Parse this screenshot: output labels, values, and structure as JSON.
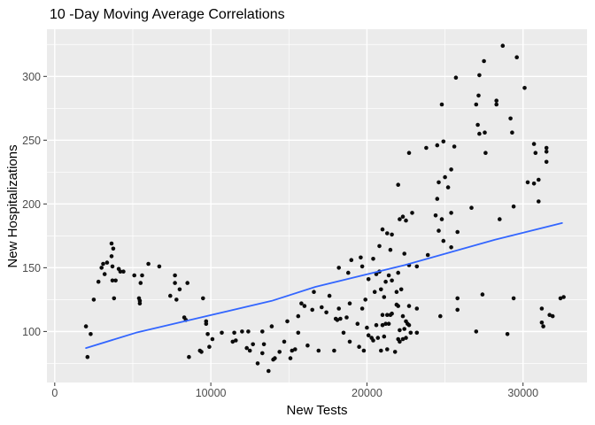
{
  "chart_data": {
    "type": "scatter",
    "title": "10 -Day Moving Average Correlations",
    "xlabel": "New Tests",
    "ylabel": "New Hospitalizations",
    "x_ticks": [
      0,
      10000,
      20000,
      30000
    ],
    "x_tick_labels": [
      "0",
      "10000",
      "20000",
      "30000"
    ],
    "y_ticks": [
      100,
      150,
      200,
      250,
      300
    ],
    "y_tick_labels": [
      "100",
      "150",
      "200",
      "250",
      "300"
    ],
    "x_minor_ticks": [
      5000,
      15000,
      25000
    ],
    "y_minor_ticks": [
      75,
      125,
      175,
      225,
      275,
      325
    ],
    "xlim": [
      -500,
      34100
    ],
    "ylim": [
      60,
      337
    ],
    "grid": true,
    "legend": "none",
    "panel_bg": "#EBEBEB",
    "grid_major_color": "#FFFFFF",
    "grid_minor_color": "#F7F7F7",
    "point_color": "#0B0B0B",
    "trend_color": "#3366FF",
    "tick_mark_color": "#333333",
    "tick_label_color": "#4D4D4D",
    "points": [
      [
        2000,
        104
      ],
      [
        2100,
        80
      ],
      [
        2300,
        98
      ],
      [
        2500,
        125
      ],
      [
        2800,
        139
      ],
      [
        3000,
        150
      ],
      [
        3100,
        153
      ],
      [
        3200,
        145
      ],
      [
        3350,
        154
      ],
      [
        3640,
        169
      ],
      [
        3640,
        159
      ],
      [
        3700,
        151
      ],
      [
        3700,
        140
      ],
      [
        3750,
        165
      ],
      [
        3800,
        126
      ],
      [
        3900,
        140
      ],
      [
        4100,
        149
      ],
      [
        4200,
        147
      ],
      [
        4400,
        147
      ],
      [
        5100,
        144
      ],
      [
        5400,
        126
      ],
      [
        5450,
        124
      ],
      [
        5450,
        122
      ],
      [
        5500,
        138
      ],
      [
        5600,
        144
      ],
      [
        6000,
        153
      ],
      [
        6700,
        151
      ],
      [
        7400,
        128
      ],
      [
        7700,
        144
      ],
      [
        7700,
        138
      ],
      [
        7800,
        125
      ],
      [
        8000,
        133
      ],
      [
        8300,
        111
      ],
      [
        8400,
        109
      ],
      [
        8500,
        138
      ],
      [
        8600,
        80
      ],
      [
        9300,
        85
      ],
      [
        9400,
        84
      ],
      [
        9500,
        126
      ],
      [
        9700,
        108
      ],
      [
        9700,
        106
      ],
      [
        9800,
        98
      ],
      [
        9900,
        88
      ],
      [
        10100,
        94
      ],
      [
        10700,
        99
      ],
      [
        11400,
        92
      ],
      [
        11500,
        99
      ],
      [
        11600,
        93
      ],
      [
        12000,
        100
      ],
      [
        12300,
        87
      ],
      [
        12400,
        100
      ],
      [
        12500,
        85
      ],
      [
        12700,
        90
      ],
      [
        13000,
        75
      ],
      [
        13300,
        100
      ],
      [
        13300,
        83
      ],
      [
        13400,
        90
      ],
      [
        13700,
        69
      ],
      [
        13900,
        104
      ],
      [
        14000,
        78
      ],
      [
        14100,
        79
      ],
      [
        14400,
        84
      ],
      [
        14700,
        92
      ],
      [
        14900,
        108
      ],
      [
        15100,
        79
      ],
      [
        15200,
        85
      ],
      [
        15400,
        86
      ],
      [
        15600,
        99
      ],
      [
        15600,
        112
      ],
      [
        15800,
        122
      ],
      [
        16000,
        120
      ],
      [
        16200,
        89
      ],
      [
        16500,
        117
      ],
      [
        16600,
        131
      ],
      [
        16900,
        85
      ],
      [
        17100,
        119
      ],
      [
        17400,
        115
      ],
      [
        17600,
        128
      ],
      [
        17900,
        85
      ],
      [
        18000,
        110
      ],
      [
        18100,
        109
      ],
      [
        18200,
        118
      ],
      [
        18200,
        150
      ],
      [
        18300,
        110
      ],
      [
        18500,
        99
      ],
      [
        18700,
        111
      ],
      [
        18800,
        146
      ],
      [
        18900,
        92
      ],
      [
        18900,
        122
      ],
      [
        19000,
        156
      ],
      [
        19400,
        106
      ],
      [
        19500,
        88
      ],
      [
        19600,
        158
      ],
      [
        19700,
        118
      ],
      [
        19700,
        151
      ],
      [
        19800,
        85
      ],
      [
        19900,
        125
      ],
      [
        20000,
        103
      ],
      [
        20100,
        97
      ],
      [
        20100,
        141
      ],
      [
        20300,
        95
      ],
      [
        20400,
        93
      ],
      [
        20400,
        157
      ],
      [
        20500,
        131
      ],
      [
        20600,
        105
      ],
      [
        20600,
        145
      ],
      [
        20700,
        95
      ],
      [
        20800,
        147
      ],
      [
        20800,
        167
      ],
      [
        20900,
        85
      ],
      [
        20900,
        133
      ],
      [
        21000,
        105
      ],
      [
        21000,
        113
      ],
      [
        21000,
        180
      ],
      [
        21100,
        96
      ],
      [
        21100,
        127
      ],
      [
        21200,
        106
      ],
      [
        21200,
        139
      ],
      [
        21300,
        86
      ],
      [
        21300,
        113
      ],
      [
        21300,
        177
      ],
      [
        21400,
        106
      ],
      [
        21400,
        144
      ],
      [
        21500,
        113
      ],
      [
        21500,
        164
      ],
      [
        21600,
        114
      ],
      [
        21600,
        140
      ],
      [
        21600,
        176
      ],
      [
        21800,
        84
      ],
      [
        21900,
        121
      ],
      [
        21900,
        131
      ],
      [
        22000,
        94
      ],
      [
        22000,
        120
      ],
      [
        22000,
        146
      ],
      [
        22000,
        215
      ],
      [
        22100,
        92
      ],
      [
        22100,
        101
      ],
      [
        22100,
        188
      ],
      [
        22200,
        133
      ],
      [
        22300,
        94
      ],
      [
        22300,
        112
      ],
      [
        22300,
        190
      ],
      [
        22400,
        102
      ],
      [
        22400,
        161
      ],
      [
        22500,
        95
      ],
      [
        22500,
        108
      ],
      [
        22500,
        187
      ],
      [
        22600,
        106
      ],
      [
        22700,
        105
      ],
      [
        22700,
        120
      ],
      [
        22700,
        152
      ],
      [
        22700,
        240
      ],
      [
        22800,
        99
      ],
      [
        22900,
        193
      ],
      [
        23200,
        99
      ],
      [
        23200,
        118
      ],
      [
        23200,
        151
      ],
      [
        23800,
        244
      ],
      [
        23900,
        160
      ],
      [
        24400,
        191
      ],
      [
        24500,
        204
      ],
      [
        24500,
        246
      ],
      [
        24600,
        179
      ],
      [
        24600,
        217
      ],
      [
        24700,
        112
      ],
      [
        24800,
        188
      ],
      [
        24800,
        278
      ],
      [
        24900,
        171
      ],
      [
        24900,
        249
      ],
      [
        25000,
        221
      ],
      [
        25200,
        213
      ],
      [
        25400,
        166
      ],
      [
        25400,
        193
      ],
      [
        25400,
        227
      ],
      [
        25600,
        245
      ],
      [
        25700,
        299
      ],
      [
        25800,
        117
      ],
      [
        25800,
        126
      ],
      [
        25800,
        178
      ],
      [
        26700,
        197
      ],
      [
        27000,
        100
      ],
      [
        27000,
        278
      ],
      [
        27100,
        262
      ],
      [
        27150,
        285
      ],
      [
        27200,
        255
      ],
      [
        27200,
        301
      ],
      [
        27400,
        129
      ],
      [
        27500,
        312
      ],
      [
        27550,
        256
      ],
      [
        27600,
        240
      ],
      [
        28300,
        281
      ],
      [
        28300,
        278
      ],
      [
        28500,
        188
      ],
      [
        28700,
        324
      ],
      [
        29000,
        98
      ],
      [
        29200,
        267
      ],
      [
        29300,
        256
      ],
      [
        29400,
        126
      ],
      [
        29400,
        198
      ],
      [
        29600,
        315
      ],
      [
        30100,
        291
      ],
      [
        30300,
        217
      ],
      [
        30700,
        216
      ],
      [
        30700,
        247
      ],
      [
        30800,
        240
      ],
      [
        31000,
        202
      ],
      [
        31000,
        219
      ],
      [
        31200,
        107
      ],
      [
        31200,
        118
      ],
      [
        31300,
        104
      ],
      [
        31500,
        233
      ],
      [
        31500,
        241
      ],
      [
        31500,
        244
      ],
      [
        31700,
        113
      ],
      [
        31900,
        112
      ],
      [
        32400,
        126
      ],
      [
        32600,
        127
      ]
    ],
    "trend_line": [
      [
        2000,
        87
      ],
      [
        5200,
        99
      ],
      [
        9000,
        110
      ],
      [
        13900,
        124
      ],
      [
        16700,
        135
      ],
      [
        22400,
        152
      ],
      [
        28200,
        172
      ],
      [
        32500,
        185
      ]
    ]
  },
  "layout_note": "scatter plot with linear smoothing line, ggplot gray theme"
}
